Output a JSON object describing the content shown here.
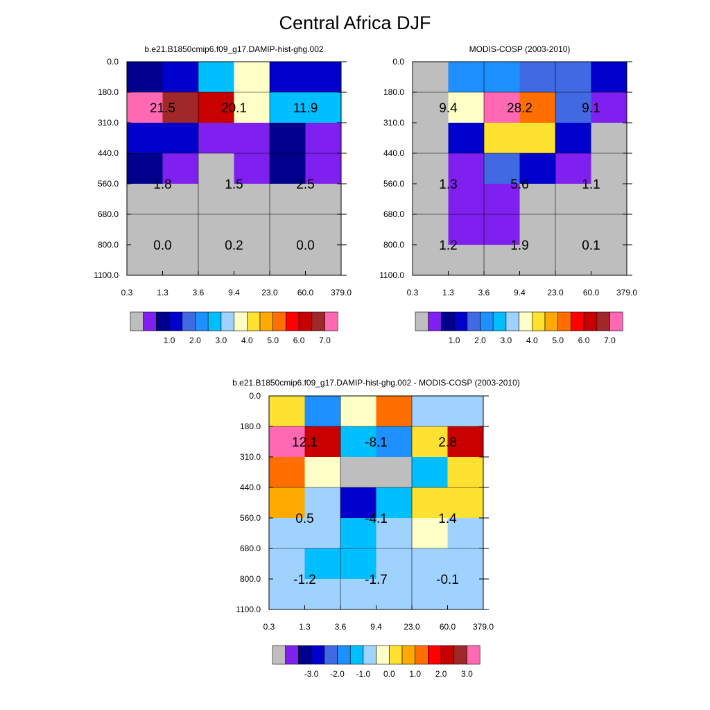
{
  "page": {
    "title": "Central Africa DJF"
  },
  "palette": [
    "#bebebe",
    "#8020f0",
    "#00008c",
    "#0000cd",
    "#4169e1",
    "#1e90ff",
    "#00bfff",
    "#a0d2ff",
    "#ffffc8",
    "#ffe132",
    "#ffaa00",
    "#ff6e00",
    "#ff0000",
    "#c80000",
    "#a02828",
    "#ff69b4"
  ],
  "chart_data": [
    {
      "type": "heatmap",
      "title": "b.e21.B1850cmip6.f09_g17.DAMIP-hist-ghg.002",
      "x_tick_labels": [
        "0.3",
        "1.3",
        "3.6",
        "9.4",
        "23.0",
        "60.0",
        "379.0"
      ],
      "y_tick_labels": [
        "0.0",
        "180.0",
        "310.0",
        "440.0",
        "560.0",
        "680.0",
        "800.0",
        "1100.0"
      ],
      "cell_color_index": [
        [
          2,
          3,
          6,
          8,
          3,
          3
        ],
        [
          15,
          14,
          13,
          8,
          6,
          6
        ],
        [
          3,
          3,
          1,
          1,
          2,
          1
        ],
        [
          2,
          1,
          0,
          1,
          2,
          1
        ],
        [
          0,
          0,
          0,
          0,
          0,
          0
        ],
        [
          0,
          0,
          0,
          0,
          0,
          0
        ],
        [
          0,
          0,
          0,
          0,
          0,
          0
        ]
      ],
      "annotations": [
        {
          "col": 1,
          "row": 1.5,
          "text": "21.5"
        },
        {
          "col": 3,
          "row": 1.5,
          "text": "20.1"
        },
        {
          "col": 5,
          "row": 1.5,
          "text": "11.9"
        },
        {
          "col": 1,
          "row": 4,
          "text": "1.8"
        },
        {
          "col": 3,
          "row": 4,
          "text": "1.5"
        },
        {
          "col": 5,
          "row": 4,
          "text": "2.5"
        },
        {
          "col": 1,
          "row": 6,
          "text": "0.0"
        },
        {
          "col": 3,
          "row": 6,
          "text": "0.2"
        },
        {
          "col": 5,
          "row": 6,
          "text": "0.0"
        }
      ],
      "colorbar": {
        "labels": [
          "1.0",
          "2.0",
          "3.0",
          "4.0",
          "5.0",
          "6.0",
          "7.0"
        ]
      }
    },
    {
      "type": "heatmap",
      "title": "MODIS-COSP (2003-2010)",
      "x_tick_labels": [
        "0.3",
        "1.3",
        "3.6",
        "9.4",
        "23.0",
        "60.0",
        "379.0"
      ],
      "y_tick_labels": [
        "0.0",
        "180.0",
        "310.0",
        "440.0",
        "560.0",
        "680.0",
        "800.0",
        "1100.0"
      ],
      "cell_color_index": [
        [
          0,
          5,
          5,
          4,
          4,
          3
        ],
        [
          0,
          8,
          15,
          11,
          4,
          1
        ],
        [
          0,
          3,
          9,
          9,
          3,
          0
        ],
        [
          0,
          1,
          4,
          3,
          1,
          0
        ],
        [
          0,
          1,
          1,
          0,
          0,
          0
        ],
        [
          0,
          1,
          1,
          0,
          0,
          0
        ],
        [
          0,
          0,
          0,
          0,
          0,
          0
        ]
      ],
      "annotations": [
        {
          "col": 1,
          "row": 1.5,
          "text": "9.4"
        },
        {
          "col": 3,
          "row": 1.5,
          "text": "28.2"
        },
        {
          "col": 5,
          "row": 1.5,
          "text": "9.1"
        },
        {
          "col": 1,
          "row": 4,
          "text": "1.3"
        },
        {
          "col": 3,
          "row": 4,
          "text": "5.6"
        },
        {
          "col": 5,
          "row": 4,
          "text": "1.1"
        },
        {
          "col": 1,
          "row": 6,
          "text": "1.2"
        },
        {
          "col": 3,
          "row": 6,
          "text": "1.9"
        },
        {
          "col": 5,
          "row": 6,
          "text": "0.1"
        }
      ],
      "colorbar": {
        "labels": [
          "1.0",
          "2.0",
          "3.0",
          "4.0",
          "5.0",
          "6.0",
          "7.0"
        ]
      }
    },
    {
      "type": "heatmap",
      "title": "b.e21.B1850cmip6.f09_g17.DAMIP-hist-ghg.002 - MODIS-COSP (2003-2010)",
      "x_tick_labels": [
        "0.3",
        "1.3",
        "3.6",
        "9.4",
        "23.0",
        "60.0",
        "379.0"
      ],
      "y_tick_labels": [
        "0.0",
        "180.0",
        "310.0",
        "440.0",
        "560.0",
        "680.0",
        "800.0",
        "1100.0"
      ],
      "cell_color_index": [
        [
          9,
          5,
          8,
          11,
          7,
          7
        ],
        [
          15,
          13,
          6,
          5,
          9,
          13
        ],
        [
          11,
          8,
          0,
          0,
          6,
          9
        ],
        [
          10,
          7,
          3,
          6,
          9,
          9
        ],
        [
          7,
          7,
          6,
          7,
          8,
          7
        ],
        [
          7,
          6,
          6,
          7,
          7,
          7
        ],
        [
          7,
          7,
          7,
          7,
          7,
          7
        ]
      ],
      "annotations": [
        {
          "col": 1,
          "row": 1.5,
          "text": "12.1"
        },
        {
          "col": 3,
          "row": 1.5,
          "text": "-8.1"
        },
        {
          "col": 5,
          "row": 1.5,
          "text": "2.8"
        },
        {
          "col": 1,
          "row": 4,
          "text": "0.5"
        },
        {
          "col": 3,
          "row": 4,
          "text": "-4.1"
        },
        {
          "col": 5,
          "row": 4,
          "text": "1.4"
        },
        {
          "col": 1,
          "row": 6,
          "text": "-1.2"
        },
        {
          "col": 3,
          "row": 6,
          "text": "-1.7"
        },
        {
          "col": 5,
          "row": 6,
          "text": "-0.1"
        }
      ],
      "colorbar": {
        "labels": [
          "-3.0",
          "-2.0",
          "-1.0",
          "0.0",
          "1.0",
          "2.0",
          "3.0"
        ]
      }
    }
  ]
}
